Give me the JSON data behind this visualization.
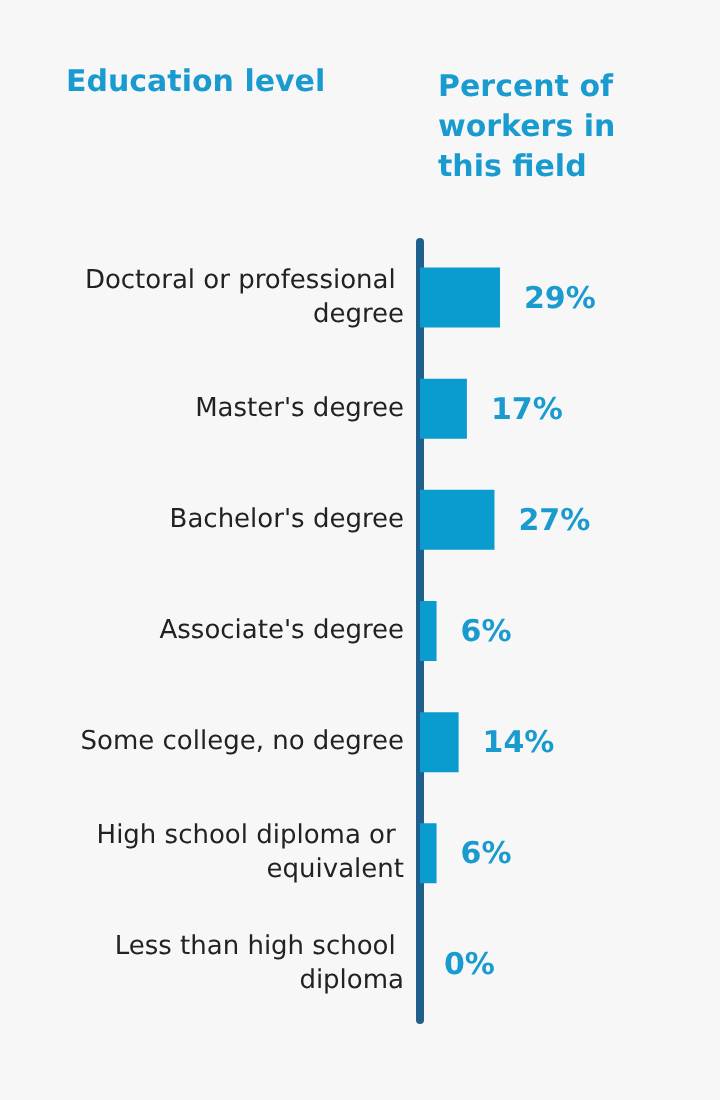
{
  "chart_data": {
    "type": "bar",
    "orientation": "horizontal",
    "ylabel": "Education level",
    "xlabel": "Percent of workers in this field",
    "categories": [
      "Doctoral or professional degree",
      "Master's degree",
      "Bachelor's degree",
      "Associate's degree",
      "Some college, no degree",
      "High school diploma or equivalent",
      "Less than high school diploma"
    ],
    "values": [
      29,
      17,
      27,
      6,
      14,
      6,
      0
    ],
    "value_labels": [
      "29%",
      "17%",
      "27%",
      "6%",
      "14%",
      "6%",
      "0%"
    ],
    "color": "#0a9bcf"
  }
}
